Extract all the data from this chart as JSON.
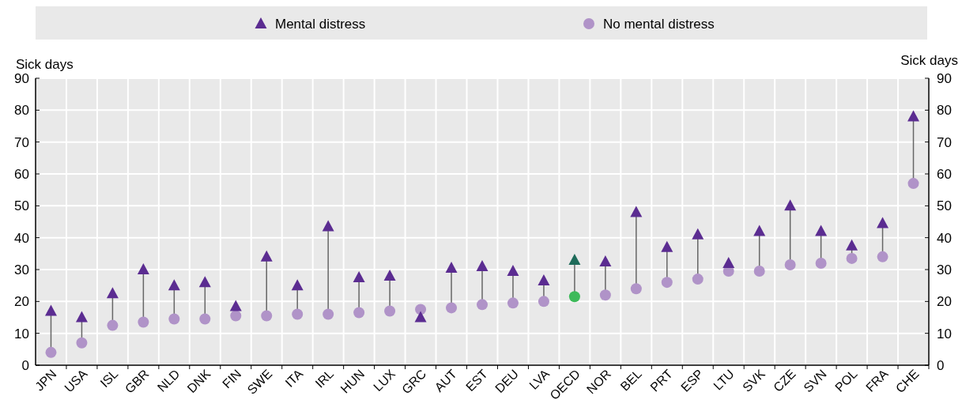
{
  "chart_data": {
    "type": "scatter",
    "ylabel": "Sick days",
    "y2label": "Sick days",
    "categories": [
      "JPN",
      "USA",
      "ISL",
      "GBR",
      "NLD",
      "DNK",
      "FIN",
      "SWE",
      "ITA",
      "IRL",
      "HUN",
      "LUX",
      "GRC",
      "AUT",
      "EST",
      "DEU",
      "LVA",
      "OECD",
      "NOR",
      "BEL",
      "PRT",
      "ESP",
      "LTU",
      "SVK",
      "CZE",
      "SVN",
      "POL",
      "FRA",
      "CHE"
    ],
    "series": [
      {
        "name": "Mental distress",
        "color": "#5b2c91",
        "marker": "triangle",
        "colors": [
          "#5b2c91",
          "#5b2c91",
          "#5b2c91",
          "#5b2c91",
          "#5b2c91",
          "#5b2c91",
          "#5b2c91",
          "#5b2c91",
          "#5b2c91",
          "#5b2c91",
          "#5b2c91",
          "#5b2c91",
          "#5b2c91",
          "#5b2c91",
          "#5b2c91",
          "#5b2c91",
          "#5b2c91",
          "#1e6b5a",
          "#5b2c91",
          "#5b2c91",
          "#5b2c91",
          "#5b2c91",
          "#5b2c91",
          "#5b2c91",
          "#5b2c91",
          "#5b2c91",
          "#5b2c91",
          "#5b2c91",
          "#5b2c91"
        ],
        "values": [
          17,
          15,
          22.5,
          30,
          25,
          26,
          18.5,
          34,
          25,
          43.5,
          27.5,
          28,
          15,
          30.5,
          31,
          29.5,
          26.5,
          33,
          32.5,
          48,
          37,
          41,
          32,
          42,
          50,
          42,
          37.5,
          44.5,
          78
        ]
      },
      {
        "name": "No mental distress",
        "color": "#b093c8",
        "marker": "circle",
        "colors": [
          "#b093c8",
          "#b093c8",
          "#b093c8",
          "#b093c8",
          "#b093c8",
          "#b093c8",
          "#b093c8",
          "#b093c8",
          "#b093c8",
          "#b093c8",
          "#b093c8",
          "#b093c8",
          "#b093c8",
          "#b093c8",
          "#b093c8",
          "#b093c8",
          "#b093c8",
          "#3dba5a",
          "#b093c8",
          "#b093c8",
          "#b093c8",
          "#b093c8",
          "#b093c8",
          "#b093c8",
          "#b093c8",
          "#b093c8",
          "#b093c8",
          "#b093c8",
          "#b093c8"
        ],
        "values": [
          4,
          7,
          12.5,
          13.5,
          14.5,
          14.5,
          15.5,
          15.5,
          16,
          16,
          16.5,
          17,
          17.5,
          18,
          19,
          19.5,
          20,
          21.5,
          22,
          24,
          26,
          27,
          29.5,
          29.5,
          31.5,
          32,
          33.5,
          34,
          57
        ]
      }
    ],
    "ylim": [
      0,
      90
    ],
    "yticks": [
      0,
      10,
      20,
      30,
      40,
      50,
      60,
      70,
      80,
      90
    ],
    "y2lim": [
      0,
      90
    ],
    "y2ticks": [
      0,
      10,
      20,
      30,
      40,
      50,
      60,
      70,
      80,
      90
    ],
    "grid": true,
    "legend": "top"
  }
}
